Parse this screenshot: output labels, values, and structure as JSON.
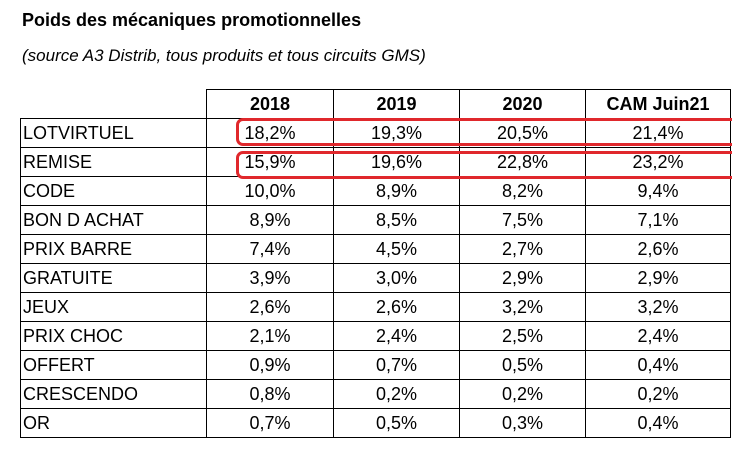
{
  "heading": {
    "title": "Poids des mécaniques promotionnelles",
    "subtitle": "(source A3 Distrib, tous produits et tous circuits GMS)"
  },
  "table": {
    "columns": [
      "",
      "2018",
      "2019",
      "2020",
      "CAM Juin21"
    ],
    "rows": [
      {
        "label": "LOTVIRTUEL",
        "values": [
          "18,2%",
          "19,3%",
          "20,5%",
          "21,4%"
        ]
      },
      {
        "label": "REMISE",
        "values": [
          "15,9%",
          "19,6%",
          "22,8%",
          "23,2%"
        ]
      },
      {
        "label": "CODE",
        "values": [
          "10,0%",
          "8,9%",
          "8,2%",
          "9,4%"
        ]
      },
      {
        "label": "BON D ACHAT",
        "values": [
          "8,9%",
          "8,5%",
          "7,5%",
          "7,1%"
        ]
      },
      {
        "label": "PRIX BARRE",
        "values": [
          "7,4%",
          "4,5%",
          "2,7%",
          "2,6%"
        ]
      },
      {
        "label": "GRATUITE",
        "values": [
          "3,9%",
          "3,0%",
          "2,9%",
          "2,9%"
        ]
      },
      {
        "label": "JEUX",
        "values": [
          "2,6%",
          "2,6%",
          "3,2%",
          "3,2%"
        ]
      },
      {
        "label": "PRIX CHOC",
        "values": [
          "2,1%",
          "2,4%",
          "2,5%",
          "2,4%"
        ]
      },
      {
        "label": "OFFERT",
        "values": [
          "0,9%",
          "0,7%",
          "0,5%",
          "0,4%"
        ]
      },
      {
        "label": "CRESCENDO",
        "values": [
          "0,8%",
          "0,2%",
          "0,2%",
          "0,2%"
        ]
      },
      {
        "label": "OR",
        "values": [
          "0,7%",
          "0,5%",
          "0,3%",
          "0,4%"
        ]
      }
    ]
  },
  "annotations": {
    "highlight_color": "#e0282c",
    "highlighted_rows": [
      "LOTVIRTUEL",
      "REMISE"
    ]
  }
}
